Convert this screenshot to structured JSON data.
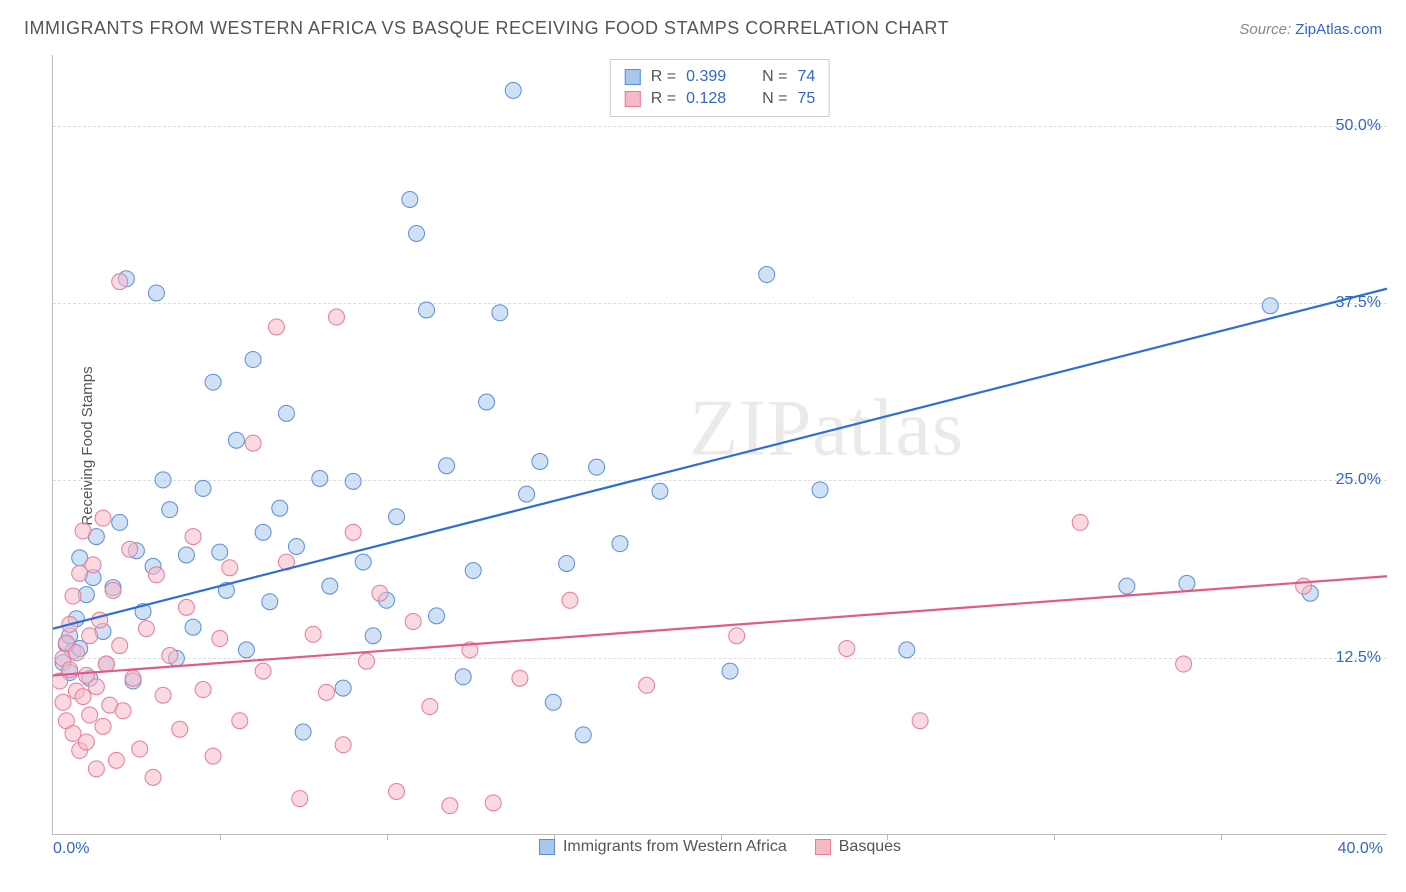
{
  "title": "IMMIGRANTS FROM WESTERN AFRICA VS BASQUE RECEIVING FOOD STAMPS CORRELATION CHART",
  "source_prefix": "Source: ",
  "source_link": "ZipAtlas.com",
  "ylabel": "Receiving Food Stamps",
  "watermark": "ZIPatlas",
  "chart": {
    "type": "scatter",
    "xlim": [
      0,
      40
    ],
    "ylim": [
      0,
      55
    ],
    "x_tick_labels": {
      "left": "0.0%",
      "right": "40.0%"
    },
    "y_ticks": [
      {
        "v": 12.5,
        "label": "12.5%"
      },
      {
        "v": 25.0,
        "label": "25.0%"
      },
      {
        "v": 37.5,
        "label": "37.5%"
      },
      {
        "v": 50.0,
        "label": "50.0%"
      }
    ],
    "x_minor_ticks": [
      5,
      10,
      15,
      20,
      25,
      30,
      35
    ],
    "background_color": "#ffffff",
    "grid_color": "#dddddd",
    "axis_color": "#bbbbbb",
    "marker_radius": 8,
    "marker_opacity": 0.55,
    "line_width": 2.2,
    "series": [
      {
        "id": "western_africa",
        "label": "Immigrants from Western Africa",
        "color_fill": "#a9c7ec",
        "color_stroke": "#5a8fd6",
        "line_color": "#2e6fd6",
        "R": "0.399",
        "N": "74",
        "trend": {
          "x1": 0,
          "y1": 14.5,
          "x2": 40,
          "y2": 38.5
        },
        "points": [
          [
            0.3,
            12.1
          ],
          [
            0.4,
            13.4
          ],
          [
            0.5,
            11.4
          ],
          [
            0.5,
            14.0
          ],
          [
            0.6,
            12.9
          ],
          [
            0.7,
            15.2
          ],
          [
            0.8,
            13.1
          ],
          [
            0.8,
            19.5
          ],
          [
            1.0,
            16.9
          ],
          [
            1.1,
            11.0
          ],
          [
            1.2,
            18.1
          ],
          [
            1.3,
            21.0
          ],
          [
            1.5,
            14.3
          ],
          [
            1.6,
            12.0
          ],
          [
            1.8,
            17.4
          ],
          [
            2.0,
            22.0
          ],
          [
            2.2,
            39.2
          ],
          [
            2.4,
            10.8
          ],
          [
            2.5,
            20.0
          ],
          [
            2.7,
            15.7
          ],
          [
            3.0,
            18.9
          ],
          [
            3.1,
            38.2
          ],
          [
            3.3,
            25.0
          ],
          [
            3.5,
            22.9
          ],
          [
            3.7,
            12.4
          ],
          [
            4.0,
            19.7
          ],
          [
            4.2,
            14.6
          ],
          [
            4.5,
            24.4
          ],
          [
            4.8,
            31.9
          ],
          [
            5.0,
            19.9
          ],
          [
            5.2,
            17.2
          ],
          [
            5.5,
            27.8
          ],
          [
            5.8,
            13.0
          ],
          [
            6.0,
            33.5
          ],
          [
            6.3,
            21.3
          ],
          [
            6.5,
            16.4
          ],
          [
            6.8,
            23.0
          ],
          [
            7.0,
            29.7
          ],
          [
            7.3,
            20.3
          ],
          [
            7.5,
            7.2
          ],
          [
            8.0,
            25.1
          ],
          [
            8.3,
            17.5
          ],
          [
            8.7,
            10.3
          ],
          [
            9.0,
            24.9
          ],
          [
            9.3,
            19.2
          ],
          [
            9.6,
            14.0
          ],
          [
            10.0,
            16.5
          ],
          [
            10.3,
            22.4
          ],
          [
            10.7,
            44.8
          ],
          [
            10.9,
            42.4
          ],
          [
            11.2,
            37.0
          ],
          [
            11.5,
            15.4
          ],
          [
            11.8,
            26.0
          ],
          [
            12.3,
            11.1
          ],
          [
            12.6,
            18.6
          ],
          [
            13.0,
            30.5
          ],
          [
            13.4,
            36.8
          ],
          [
            13.8,
            52.5
          ],
          [
            14.2,
            24.0
          ],
          [
            14.6,
            26.3
          ],
          [
            15.0,
            9.3
          ],
          [
            15.4,
            19.1
          ],
          [
            15.9,
            7.0
          ],
          [
            16.3,
            25.9
          ],
          [
            17.0,
            20.5
          ],
          [
            18.2,
            24.2
          ],
          [
            20.3,
            11.5
          ],
          [
            21.4,
            39.5
          ],
          [
            23.0,
            24.3
          ],
          [
            25.6,
            13.0
          ],
          [
            32.2,
            17.5
          ],
          [
            34.0,
            17.7
          ],
          [
            36.5,
            37.3
          ],
          [
            37.7,
            17.0
          ]
        ]
      },
      {
        "id": "basques",
        "label": "Basques",
        "color_fill": "#f5b9c8",
        "color_stroke": "#e87b9a",
        "line_color": "#e35a85",
        "R": "0.128",
        "N": "75",
        "trend": {
          "x1": 0,
          "y1": 11.2,
          "x2": 40,
          "y2": 18.2
        },
        "points": [
          [
            0.2,
            10.8
          ],
          [
            0.3,
            12.4
          ],
          [
            0.3,
            9.3
          ],
          [
            0.4,
            13.5
          ],
          [
            0.4,
            8.0
          ],
          [
            0.5,
            11.6
          ],
          [
            0.5,
            14.8
          ],
          [
            0.6,
            7.1
          ],
          [
            0.6,
            16.8
          ],
          [
            0.7,
            10.1
          ],
          [
            0.7,
            12.8
          ],
          [
            0.8,
            5.9
          ],
          [
            0.8,
            18.4
          ],
          [
            0.9,
            9.7
          ],
          [
            0.9,
            21.4
          ],
          [
            1.0,
            11.2
          ],
          [
            1.0,
            6.5
          ],
          [
            1.1,
            14.0
          ],
          [
            1.1,
            8.4
          ],
          [
            1.2,
            19.0
          ],
          [
            1.3,
            10.4
          ],
          [
            1.3,
            4.6
          ],
          [
            1.4,
            15.1
          ],
          [
            1.5,
            22.3
          ],
          [
            1.5,
            7.6
          ],
          [
            1.6,
            12.0
          ],
          [
            1.7,
            9.1
          ],
          [
            1.8,
            17.2
          ],
          [
            1.9,
            5.2
          ],
          [
            2.0,
            13.3
          ],
          [
            2.0,
            39.0
          ],
          [
            2.1,
            8.7
          ],
          [
            2.3,
            20.1
          ],
          [
            2.4,
            11.0
          ],
          [
            2.6,
            6.0
          ],
          [
            2.8,
            14.5
          ],
          [
            3.0,
            4.0
          ],
          [
            3.1,
            18.3
          ],
          [
            3.3,
            9.8
          ],
          [
            3.5,
            12.6
          ],
          [
            3.8,
            7.4
          ],
          [
            4.0,
            16.0
          ],
          [
            4.2,
            21.0
          ],
          [
            4.5,
            10.2
          ],
          [
            4.8,
            5.5
          ],
          [
            5.0,
            13.8
          ],
          [
            5.3,
            18.8
          ],
          [
            5.6,
            8.0
          ],
          [
            6.0,
            27.6
          ],
          [
            6.3,
            11.5
          ],
          [
            6.7,
            35.8
          ],
          [
            7.0,
            19.2
          ],
          [
            7.4,
            2.5
          ],
          [
            7.8,
            14.1
          ],
          [
            8.2,
            10.0
          ],
          [
            8.5,
            36.5
          ],
          [
            8.7,
            6.3
          ],
          [
            9.0,
            21.3
          ],
          [
            9.4,
            12.2
          ],
          [
            9.8,
            17.0
          ],
          [
            10.3,
            3.0
          ],
          [
            10.8,
            15.0
          ],
          [
            11.3,
            9.0
          ],
          [
            11.9,
            2.0
          ],
          [
            12.5,
            13.0
          ],
          [
            13.2,
            2.2
          ],
          [
            14.0,
            11.0
          ],
          [
            15.5,
            16.5
          ],
          [
            17.8,
            10.5
          ],
          [
            20.5,
            14.0
          ],
          [
            23.8,
            13.1
          ],
          [
            26.0,
            8.0
          ],
          [
            30.8,
            22.0
          ],
          [
            33.9,
            12.0
          ],
          [
            37.5,
            17.5
          ]
        ]
      }
    ]
  },
  "legend_labels": {
    "R": "R =",
    "N": "N ="
  }
}
